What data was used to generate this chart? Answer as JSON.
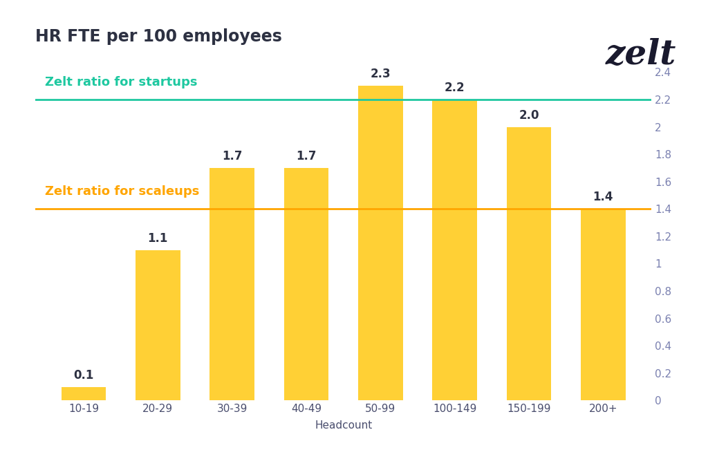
{
  "title": "HR FTE per 100 employees",
  "logo_text": "zelt",
  "categories": [
    "10-19",
    "20-29",
    "30-39",
    "40-49",
    "50-99",
    "100-149",
    "150-199",
    "200+"
  ],
  "values": [
    0.1,
    1.1,
    1.7,
    1.7,
    2.3,
    2.2,
    2.0,
    1.4
  ],
  "bar_color": "#FFD035",
  "startup_ratio": 2.2,
  "scaleup_ratio": 1.4,
  "startup_label": "Zelt ratio for startups",
  "scaleup_label": "Zelt ratio for scaleups",
  "startup_color": "#1EC8A0",
  "scaleup_color": "#FFA500",
  "xlabel": "Headcount",
  "ylim": [
    0,
    2.5
  ],
  "yticks": [
    0,
    0.2,
    0.4,
    0.6,
    0.8,
    1.0,
    1.2,
    1.4,
    1.6,
    1.8,
    2.0,
    2.2,
    2.4
  ],
  "ytick_labels": [
    "0",
    "0.2",
    "0.4",
    "0.6",
    "0.8",
    "1",
    "1.2",
    "1.4",
    "1.6",
    "1.8",
    "2",
    "2.2",
    "2.4"
  ],
  "title_color": "#2d3142",
  "bar_label_color": "#2d3142",
  "xtick_color": "#4a4e6e",
  "ytick_color": "#7a80b0",
  "background_color": "#ffffff",
  "grid_color": "#cccccc",
  "title_fontsize": 17,
  "ref_label_fontsize": 13,
  "tick_fontsize": 11,
  "bar_label_fontsize": 12,
  "xlabel_fontsize": 11,
  "bar_width": 0.6
}
